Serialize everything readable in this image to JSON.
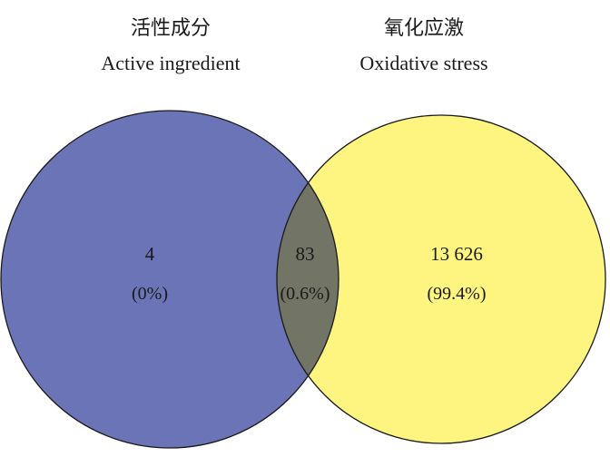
{
  "sets": {
    "left": {
      "title_zh": "活性成分",
      "title_en": "Active ingredient",
      "color": "#6b74b6"
    },
    "right": {
      "title_zh": "氧化应激",
      "title_en": "Oxidative stress",
      "color": "#fef480"
    },
    "overlap_color": "#727465",
    "outline_color": "#1a1a1a"
  },
  "regions": {
    "left_only": {
      "count": "4",
      "percent": "(0%)"
    },
    "intersection": {
      "count": "83",
      "percent": "(0.6%)"
    },
    "right_only": {
      "count": "13 626",
      "percent": "(99.4%)"
    }
  }
}
